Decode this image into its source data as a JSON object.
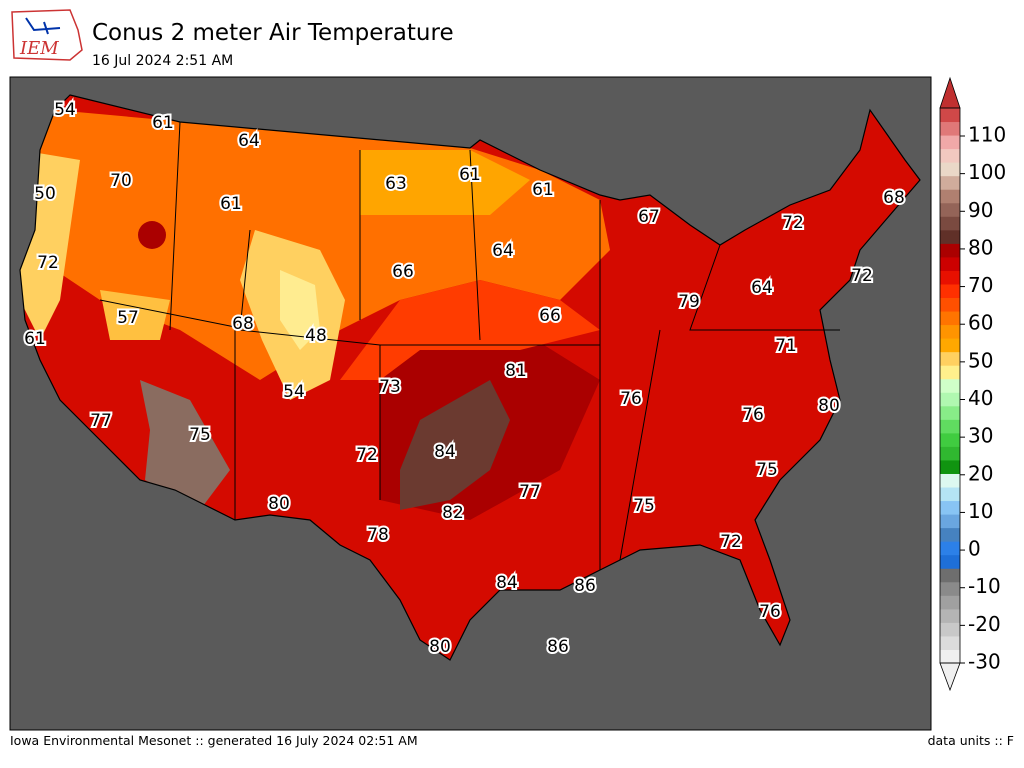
{
  "header": {
    "title": "Conus 2 meter Air Temperature",
    "subtitle": "16 Jul 2024 2:51 AM",
    "logo": "IEM"
  },
  "stations": [
    54,
    61,
    64,
    50,
    70,
    61,
    63,
    61,
    61,
    67,
    72,
    68,
    72,
    64,
    66,
    72,
    64,
    57,
    68,
    79,
    66,
    61,
    48,
    71,
    81,
    73,
    54,
    76,
    80,
    77,
    75,
    76,
    72,
    84,
    75,
    77,
    80,
    82,
    75,
    78,
    72,
    84,
    86,
    76,
    80,
    86
  ],
  "colorbar": {
    "ticks": [
      -30,
      -20,
      -10,
      0,
      10,
      20,
      30,
      40,
      50,
      60,
      70,
      80,
      90,
      100,
      110
    ],
    "colors": [
      "#f0f0f0",
      "#dcdcdc",
      "#c8c8c8",
      "#b4b4b4",
      "#a0a0a0",
      "#8a8a8a",
      "#6e6e6e",
      "#1e6fd8",
      "#2c80e8",
      "#4682c0",
      "#6aa6e0",
      "#88c4f4",
      "#b4e4f4",
      "#dcf8f0",
      "#109410",
      "#30b830",
      "#40cc40",
      "#60dc60",
      "#88ec88",
      "#b0f8b0",
      "#d0ffc8",
      "#fff08c",
      "#ffd060",
      "#ffa800",
      "#ff9400",
      "#ff7400",
      "#ff5000",
      "#ff3000",
      "#e81000",
      "#cc0000",
      "#aa0000",
      "#603028",
      "#7a4a40",
      "#946458",
      "#b08070",
      "#d0ac9c",
      "#ead8c8",
      "#f2c8c0",
      "#f0a8a8",
      "#e07878",
      "#d04848"
    ]
  },
  "footer": {
    "left": "Iowa Environmental Mesonet :: generated 16 July 2024 02:51 AM",
    "right": "data units :: F"
  }
}
